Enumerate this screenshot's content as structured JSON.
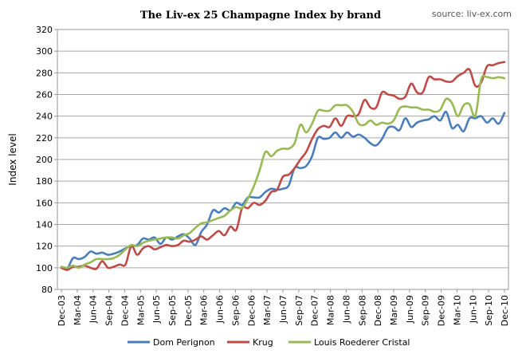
{
  "chart_data": {
    "type": "line",
    "title": "The Liv-ex 25 Champagne Index by brand",
    "source": "source: liv-ex.com",
    "ylabel": "Index level",
    "xlabel": "",
    "ylim": [
      80,
      320
    ],
    "yticks": [
      80,
      100,
      120,
      140,
      160,
      180,
      200,
      220,
      240,
      260,
      280,
      300,
      320
    ],
    "grid": true,
    "legend_position": "bottom",
    "x_tick_labels": [
      "Dec-03",
      "Mar-04",
      "Jun-04",
      "Sep-04",
      "Dec-04",
      "Mar-05",
      "Jun-05",
      "Sep-05",
      "Dec-05",
      "Mar-06",
      "Jun-06",
      "Sep-06",
      "Dec-06",
      "Mar-07",
      "Jun-07",
      "Sep-07",
      "Dec-07",
      "Mar-08",
      "Jun-08",
      "Sep-08",
      "Dec-08",
      "Mar-09",
      "Jun-09",
      "Sep-09",
      "Dec-09",
      "Mar-10",
      "Jun-10",
      "Sep-10",
      "Dec-10"
    ],
    "series": [
      {
        "name": "Dom Perignon",
        "color": "#4a7ebb",
        "values": [
          100,
          99,
          109,
          108,
          110,
          115,
          113,
          114,
          112,
          113,
          115,
          118,
          120,
          121,
          127,
          126,
          128,
          122,
          128,
          126,
          129,
          131,
          127,
          121,
          133,
          140,
          153,
          151,
          155,
          153,
          160,
          158,
          165,
          165,
          165,
          170,
          173,
          172,
          173,
          176,
          192,
          192,
          194,
          203,
          220,
          219,
          220,
          225,
          220,
          225,
          221,
          223,
          220,
          215,
          213,
          219,
          229,
          230,
          227,
          238,
          230,
          234,
          236,
          237,
          240,
          236,
          244,
          229,
          232,
          226,
          238,
          238,
          240,
          234,
          238,
          233,
          243
        ]
      },
      {
        "name": "Krug",
        "color": "#be4b48",
        "values": [
          100,
          98,
          101,
          101,
          102,
          100,
          99,
          106,
          100,
          101,
          103,
          103,
          120,
          112,
          118,
          120,
          117,
          119,
          121,
          120,
          121,
          125,
          124,
          126,
          129,
          126,
          130,
          134,
          130,
          138,
          135,
          155,
          155,
          160,
          158,
          162,
          170,
          172,
          184,
          186,
          192,
          200,
          207,
          219,
          228,
          231,
          230,
          238,
          231,
          240,
          240,
          242,
          255,
          248,
          248,
          262,
          260,
          259,
          256,
          258,
          270,
          262,
          262,
          276,
          274,
          274,
          272,
          272,
          277,
          280,
          283,
          268,
          271,
          286,
          287,
          289,
          290
        ]
      },
      {
        "name": "Louis Roederer Cristal",
        "color": "#98b954",
        "values": [
          101,
          100,
          102,
          100,
          103,
          105,
          108,
          108,
          108,
          109,
          112,
          117,
          121,
          120,
          123,
          125,
          126,
          127,
          128,
          128,
          127,
          130,
          132,
          137,
          141,
          142,
          144,
          146,
          148,
          153,
          156,
          155,
          164,
          175,
          190,
          207,
          203,
          208,
          210,
          210,
          215,
          232,
          225,
          233,
          245,
          245,
          245,
          250,
          250,
          250,
          244,
          233,
          232,
          236,
          232,
          234,
          233,
          236,
          247,
          249,
          248,
          248,
          246,
          246,
          244,
          246,
          256,
          252,
          240,
          250,
          251,
          240,
          274,
          276,
          275,
          276,
          275
        ]
      }
    ]
  }
}
